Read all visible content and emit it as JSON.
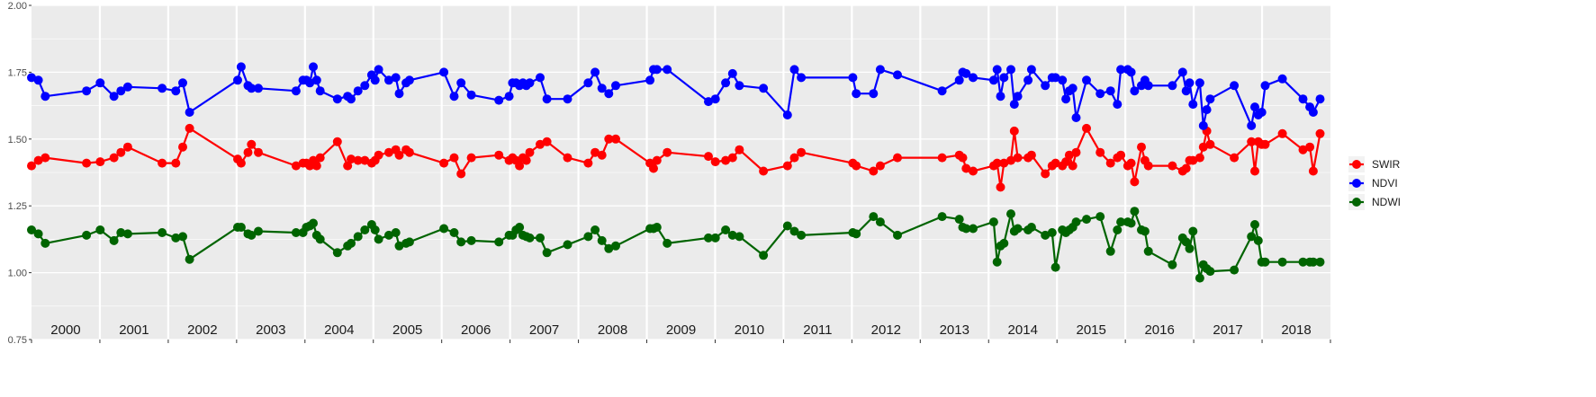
{
  "chart_data": {
    "type": "line",
    "title": "",
    "xlabel": "",
    "ylabel": "",
    "xlim": [
      2000.0,
      2018.9
    ],
    "ylim": [
      0.75,
      2.0
    ],
    "grid": true,
    "legend_position": "right",
    "y_ticks": [
      "0.75",
      "1.00",
      "1.25",
      "1.50",
      "1.75",
      "2.00"
    ],
    "y_tick_values": [
      0.75,
      1.0,
      1.25,
      1.5,
      1.75,
      2.0
    ],
    "year_labels": [
      "2000",
      "2001",
      "2002",
      "2003",
      "2004",
      "2005",
      "2006",
      "2007",
      "2008",
      "2009",
      "2010",
      "2011",
      "2012",
      "2013",
      "2014",
      "2015",
      "2016",
      "2017",
      "2018"
    ],
    "series": [
      {
        "name": "SWIR",
        "color": "#ff0000",
        "x": [
          2000.0,
          2000.1,
          2000.2,
          2000.8,
          2001.0,
          2001.2,
          2001.3,
          2001.4,
          2001.9,
          2002.1,
          2002.2,
          2002.3,
          2003.0,
          2003.05,
          2003.15,
          2003.2,
          2003.3,
          2003.85,
          2003.95,
          2004.0,
          2004.05,
          2004.1,
          2004.15,
          2004.2,
          2004.45,
          2004.6,
          2004.65,
          2004.75,
          2004.85,
          2004.95,
          2005.0,
          2005.05,
          2005.2,
          2005.3,
          2005.35,
          2005.45,
          2005.5,
          2006.0,
          2006.15,
          2006.25,
          2006.4,
          2006.8,
          2006.95,
          2007.0,
          2007.05,
          2007.1,
          2007.15,
          2007.2,
          2007.25,
          2007.4,
          2007.5,
          2007.8,
          2008.1,
          2008.2,
          2008.3,
          2008.4,
          2008.5,
          2009.0,
          2009.05,
          2009.1,
          2009.25,
          2009.85,
          2009.95,
          2010.1,
          2010.2,
          2010.3,
          2010.65,
          2011.0,
          2011.1,
          2011.2,
          2011.95,
          2012.0,
          2012.25,
          2012.35,
          2012.6,
          2013.25,
          2013.5,
          2013.55,
          2013.6,
          2013.7,
          2014.0,
          2014.05,
          2014.1,
          2014.15,
          2014.25,
          2014.3,
          2014.35,
          2014.5,
          2014.55,
          2014.75,
          2014.85,
          2014.9,
          2015.0,
          2015.05,
          2015.1,
          2015.15,
          2015.2,
          2015.35,
          2015.55,
          2015.7,
          2015.8,
          2015.85,
          2015.95,
          2016.0,
          2016.05,
          2016.15,
          2016.2,
          2016.25,
          2016.6,
          2016.75,
          2016.8,
          2016.85,
          2016.9,
          2017.0,
          2017.05,
          2017.1,
          2017.15,
          2017.5,
          2017.75,
          2017.8,
          2017.85,
          2017.9,
          2017.95,
          2018.2,
          2018.5,
          2018.6,
          2018.65,
          2018.75
        ],
        "values": [
          1.4,
          1.42,
          1.43,
          1.41,
          1.415,
          1.43,
          1.45,
          1.47,
          1.41,
          1.41,
          1.47,
          1.54,
          1.425,
          1.41,
          1.45,
          1.48,
          1.45,
          1.4,
          1.41,
          1.41,
          1.4,
          1.42,
          1.4,
          1.43,
          1.49,
          1.4,
          1.425,
          1.42,
          1.42,
          1.41,
          1.42,
          1.44,
          1.45,
          1.46,
          1.44,
          1.46,
          1.45,
          1.41,
          1.43,
          1.37,
          1.43,
          1.44,
          1.42,
          1.43,
          1.42,
          1.4,
          1.43,
          1.42,
          1.45,
          1.48,
          1.49,
          1.43,
          1.41,
          1.45,
          1.44,
          1.5,
          1.5,
          1.41,
          1.39,
          1.42,
          1.45,
          1.435,
          1.415,
          1.42,
          1.43,
          1.46,
          1.38,
          1.4,
          1.43,
          1.45,
          1.41,
          1.4,
          1.38,
          1.4,
          1.43,
          1.43,
          1.44,
          1.43,
          1.39,
          1.38,
          1.4,
          1.41,
          1.32,
          1.41,
          1.42,
          1.53,
          1.43,
          1.43,
          1.44,
          1.37,
          1.4,
          1.41,
          1.4,
          1.415,
          1.44,
          1.4,
          1.45,
          1.54,
          1.45,
          1.41,
          1.43,
          1.44,
          1.4,
          1.41,
          1.34,
          1.47,
          1.42,
          1.4,
          1.4,
          1.38,
          1.39,
          1.42,
          1.42,
          1.43,
          1.47,
          1.53,
          1.48,
          1.43,
          1.49,
          1.38,
          1.49,
          1.48,
          1.48,
          1.52,
          1.46,
          1.47,
          1.38,
          1.52
        ],
        "note": ""
      },
      {
        "name": "NDVI",
        "color": "#0000ff",
        "x": [
          2000.0,
          2000.1,
          2000.2,
          2000.8,
          2001.0,
          2001.2,
          2001.3,
          2001.4,
          2001.9,
          2002.1,
          2002.2,
          2002.3,
          2003.0,
          2003.05,
          2003.15,
          2003.2,
          2003.3,
          2003.85,
          2003.95,
          2004.0,
          2004.05,
          2004.1,
          2004.15,
          2004.2,
          2004.45,
          2004.6,
          2004.65,
          2004.75,
          2004.85,
          2004.95,
          2005.0,
          2005.05,
          2005.2,
          2005.3,
          2005.35,
          2005.45,
          2005.5,
          2006.0,
          2006.15,
          2006.25,
          2006.4,
          2006.8,
          2006.95,
          2007.0,
          2007.05,
          2007.1,
          2007.15,
          2007.2,
          2007.25,
          2007.4,
          2007.5,
          2007.8,
          2008.1,
          2008.2,
          2008.3,
          2008.4,
          2008.5,
          2009.0,
          2009.05,
          2009.1,
          2009.25,
          2009.85,
          2009.95,
          2010.1,
          2010.2,
          2010.3,
          2010.65,
          2011.0,
          2011.1,
          2011.2,
          2011.95,
          2012.0,
          2012.25,
          2012.35,
          2012.6,
          2013.25,
          2013.5,
          2013.55,
          2013.6,
          2013.7,
          2014.0,
          2014.05,
          2014.1,
          2014.15,
          2014.25,
          2014.3,
          2014.35,
          2014.5,
          2014.55,
          2014.75,
          2014.85,
          2014.9,
          2015.0,
          2015.05,
          2015.1,
          2015.15,
          2015.2,
          2015.35,
          2015.55,
          2015.7,
          2015.8,
          2015.85,
          2015.95,
          2016.0,
          2016.05,
          2016.15,
          2016.2,
          2016.25,
          2016.6,
          2016.75,
          2016.8,
          2016.85,
          2016.9,
          2017.0,
          2017.05,
          2017.1,
          2017.15,
          2017.5,
          2017.75,
          2017.8,
          2017.85,
          2017.9,
          2017.95,
          2018.2,
          2018.5,
          2018.6,
          2018.65,
          2018.75
        ],
        "values": [
          1.73,
          1.72,
          1.66,
          1.68,
          1.71,
          1.66,
          1.68,
          1.695,
          1.69,
          1.68,
          1.71,
          1.6,
          1.72,
          1.77,
          1.7,
          1.69,
          1.69,
          1.68,
          1.72,
          1.72,
          1.71,
          1.77,
          1.72,
          1.68,
          1.65,
          1.66,
          1.65,
          1.68,
          1.7,
          1.74,
          1.72,
          1.76,
          1.72,
          1.73,
          1.67,
          1.71,
          1.72,
          1.75,
          1.66,
          1.71,
          1.665,
          1.645,
          1.66,
          1.71,
          1.71,
          1.7,
          1.71,
          1.7,
          1.71,
          1.73,
          1.65,
          1.65,
          1.71,
          1.75,
          1.69,
          1.67,
          1.7,
          1.72,
          1.76,
          1.76,
          1.76,
          1.64,
          1.65,
          1.71,
          1.745,
          1.7,
          1.69,
          1.59,
          1.76,
          1.73,
          1.73,
          1.67,
          1.67,
          1.76,
          1.74,
          1.68,
          1.72,
          1.75,
          1.745,
          1.73,
          1.72,
          1.76,
          1.66,
          1.73,
          1.76,
          1.63,
          1.66,
          1.72,
          1.76,
          1.7,
          1.73,
          1.73,
          1.72,
          1.65,
          1.68,
          1.69,
          1.58,
          1.72,
          1.67,
          1.68,
          1.63,
          1.76,
          1.76,
          1.75,
          1.68,
          1.7,
          1.72,
          1.7,
          1.7,
          1.75,
          1.68,
          1.71,
          1.63,
          1.71,
          1.55,
          1.61,
          1.65,
          1.7,
          1.55,
          1.62,
          1.59,
          1.6,
          1.7,
          1.725,
          1.65,
          1.62,
          1.6,
          1.65
        ],
        "note": ""
      },
      {
        "name": "NDWI",
        "color": "#006400",
        "x": [
          2000.0,
          2000.1,
          2000.2,
          2000.8,
          2001.0,
          2001.2,
          2001.3,
          2001.4,
          2001.9,
          2002.1,
          2002.2,
          2002.3,
          2003.0,
          2003.05,
          2003.15,
          2003.2,
          2003.3,
          2003.85,
          2003.95,
          2004.0,
          2004.05,
          2004.1,
          2004.15,
          2004.2,
          2004.45,
          2004.6,
          2004.65,
          2004.75,
          2004.85,
          2004.95,
          2005.0,
          2005.05,
          2005.2,
          2005.3,
          2005.35,
          2005.45,
          2005.5,
          2006.0,
          2006.15,
          2006.25,
          2006.4,
          2006.8,
          2006.95,
          2007.0,
          2007.05,
          2007.1,
          2007.15,
          2007.2,
          2007.25,
          2007.4,
          2007.5,
          2007.8,
          2008.1,
          2008.2,
          2008.3,
          2008.4,
          2008.5,
          2009.0,
          2009.05,
          2009.1,
          2009.25,
          2009.85,
          2009.95,
          2010.1,
          2010.2,
          2010.3,
          2010.65,
          2011.0,
          2011.1,
          2011.2,
          2011.95,
          2012.0,
          2012.25,
          2012.35,
          2012.6,
          2013.25,
          2013.5,
          2013.55,
          2013.6,
          2013.7,
          2014.0,
          2014.05,
          2014.1,
          2014.15,
          2014.25,
          2014.3,
          2014.35,
          2014.5,
          2014.55,
          2014.75,
          2014.85,
          2014.9,
          2015.0,
          2015.05,
          2015.1,
          2015.15,
          2015.2,
          2015.35,
          2015.55,
          2015.7,
          2015.8,
          2015.85,
          2015.95,
          2016.0,
          2016.05,
          2016.15,
          2016.2,
          2016.25,
          2016.6,
          2016.75,
          2016.8,
          2016.85,
          2016.9,
          2017.0,
          2017.05,
          2017.1,
          2017.15,
          2017.5,
          2017.75,
          2017.8,
          2017.85,
          2017.9,
          2017.95,
          2018.2,
          2018.5,
          2018.6,
          2018.65,
          2018.75
        ],
        "values": [
          1.16,
          1.145,
          1.11,
          1.14,
          1.16,
          1.12,
          1.15,
          1.145,
          1.15,
          1.13,
          1.135,
          1.05,
          1.17,
          1.17,
          1.145,
          1.14,
          1.155,
          1.15,
          1.15,
          1.17,
          1.175,
          1.185,
          1.14,
          1.125,
          1.075,
          1.1,
          1.11,
          1.135,
          1.16,
          1.18,
          1.16,
          1.125,
          1.14,
          1.15,
          1.1,
          1.11,
          1.115,
          1.165,
          1.15,
          1.115,
          1.12,
          1.115,
          1.14,
          1.14,
          1.16,
          1.17,
          1.14,
          1.135,
          1.13,
          1.13,
          1.075,
          1.105,
          1.135,
          1.16,
          1.12,
          1.09,
          1.1,
          1.165,
          1.165,
          1.17,
          1.11,
          1.13,
          1.13,
          1.16,
          1.14,
          1.135,
          1.065,
          1.175,
          1.155,
          1.14,
          1.15,
          1.145,
          1.21,
          1.19,
          1.14,
          1.21,
          1.2,
          1.17,
          1.165,
          1.165,
          1.19,
          1.04,
          1.1,
          1.11,
          1.22,
          1.155,
          1.165,
          1.16,
          1.17,
          1.14,
          1.15,
          1.02,
          1.16,
          1.15,
          1.16,
          1.17,
          1.19,
          1.2,
          1.21,
          1.08,
          1.16,
          1.19,
          1.19,
          1.185,
          1.23,
          1.16,
          1.155,
          1.08,
          1.03,
          1.13,
          1.115,
          1.09,
          1.155,
          0.98,
          1.03,
          1.015,
          1.005,
          1.01,
          1.135,
          1.18,
          1.12,
          1.04,
          1.04,
          1.04,
          1.04,
          1.04,
          1.04,
          1.04
        ],
        "note": ""
      }
    ]
  }
}
